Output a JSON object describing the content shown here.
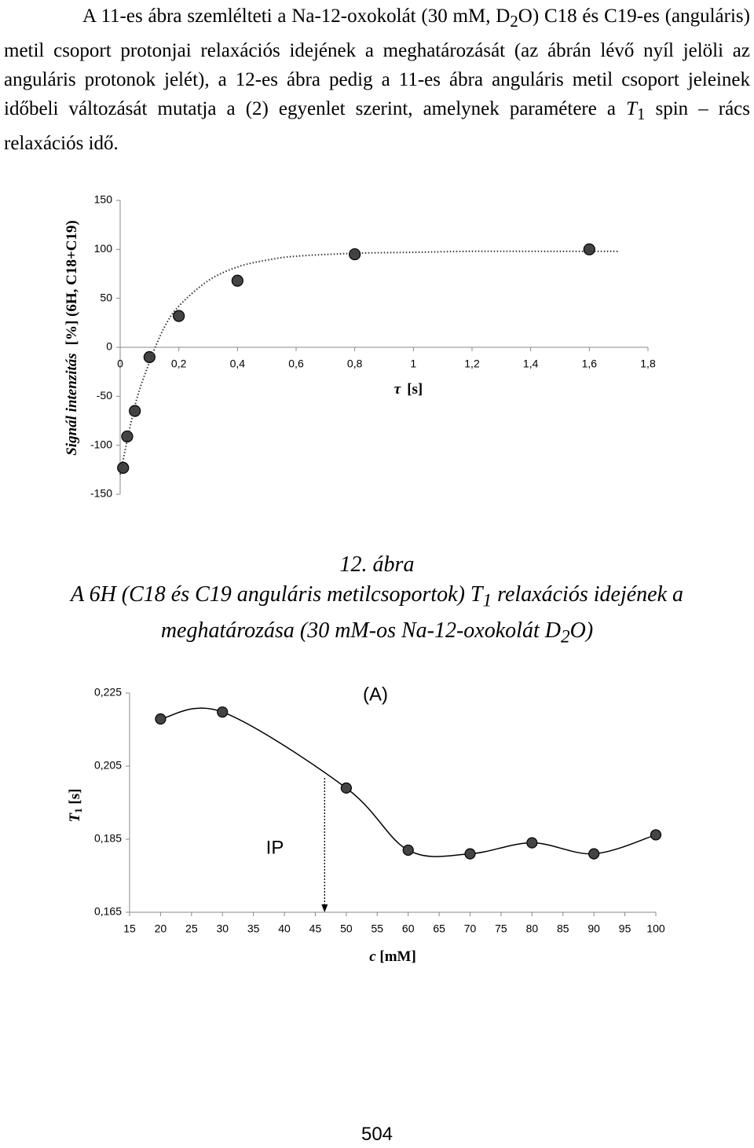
{
  "paragraph": [
    "A 11-es ábra szemlélteti a Na-12-oxokolát (30 mM, D",
    "2",
    "O) C18 és C19-es (anguláris) metil csoport protonjai relaxációs idejének a meghatározását (az ábrán lévő nyíl jelöli az anguláris protonok jelét), a 12-es ábra pedig a 11-es ábra anguláris metil csoport jeleinek időbeli változását mutatja a (2) egyenlet szerint, amelynek paramétere a ",
    "T",
    "1",
    " spin – rács relaxációs idő."
  ],
  "chart_data": [
    {
      "type": "scatter",
      "x_label": [
        "τ",
        "[s]"
      ],
      "y_label": [
        "Signál intenzitás",
        "[%]  (6H, C18+C19)"
      ],
      "xlim": [
        0,
        1.8
      ],
      "ylim": [
        -150,
        150
      ],
      "xticks": [
        0,
        {
          "value": 0.2,
          "label": "0,2"
        },
        {
          "value": 0.4,
          "label": "0,4"
        },
        {
          "value": 0.6,
          "label": "0,6"
        },
        {
          "value": 0.8,
          "label": "0,8"
        },
        1,
        {
          "value": 1.2,
          "label": "1,2"
        },
        {
          "value": 1.4,
          "label": "1,4"
        },
        {
          "value": 1.6,
          "label": "1,6"
        },
        {
          "value": 1.8,
          "label": "1,8"
        }
      ],
      "yticks": [
        -150,
        -100,
        -50,
        0,
        50,
        100,
        150
      ],
      "series": [
        {
          "color": "#333333",
          "x": [
            0.01,
            0.024,
            0.05,
            0.1,
            0.2,
            0.4,
            0.8,
            1.6
          ],
          "values": [
            -123,
            -91,
            -65,
            -10,
            32,
            68,
            95,
            100
          ]
        },
        {
          "color": "#333333",
          "line_style": "dotted",
          "x": [
            0,
            0.05,
            0.1,
            0.15,
            0.2,
            0.3,
            0.4,
            0.5,
            0.6,
            0.8,
            1.0,
            1.2,
            1.4,
            1.7
          ],
          "values": [
            -130,
            -60,
            -15,
            20,
            42,
            68,
            82,
            89,
            93,
            96,
            97,
            98,
            98,
            98
          ]
        }
      ]
    },
    {
      "type": "line",
      "smooth": true,
      "annotations": [
        "(A)",
        "IP"
      ],
      "ip_x": 46.5,
      "x_label": [
        "c",
        " [mM]"
      ],
      "y_label": [
        "T",
        "1",
        " [s]"
      ],
      "xlim": [
        15,
        100
      ],
      "ylim": [
        0.165,
        0.225
      ],
      "xticks": [
        15,
        20,
        25,
        30,
        35,
        40,
        45,
        50,
        55,
        60,
        65,
        70,
        75,
        80,
        85,
        90,
        95,
        100
      ],
      "yticks": [
        {
          "value": 0.165,
          "label": "0,165"
        },
        {
          "value": 0.185,
          "label": "0,185"
        },
        {
          "value": 0.205,
          "label": "0,205"
        },
        {
          "value": 0.225,
          "label": "0,225"
        }
      ],
      "series": [
        {
          "color": "#000000",
          "x": [
            20,
            30,
            50,
            60,
            70,
            80,
            90,
            100
          ],
          "values": [
            0.2179,
            0.2198,
            0.199,
            0.182,
            0.181,
            0.184,
            0.181,
            0.1862
          ]
        }
      ]
    }
  ],
  "caption": {
    "title": "12. ábra",
    "text": [
      "A 6H  (C18 és C19 anguláris metilcsoportok) T",
      "1",
      " relaxációs idejének a meghatározása (30 mM-os Na-12-oxokolát D",
      "2",
      "O)"
    ]
  },
  "page_number": "504"
}
